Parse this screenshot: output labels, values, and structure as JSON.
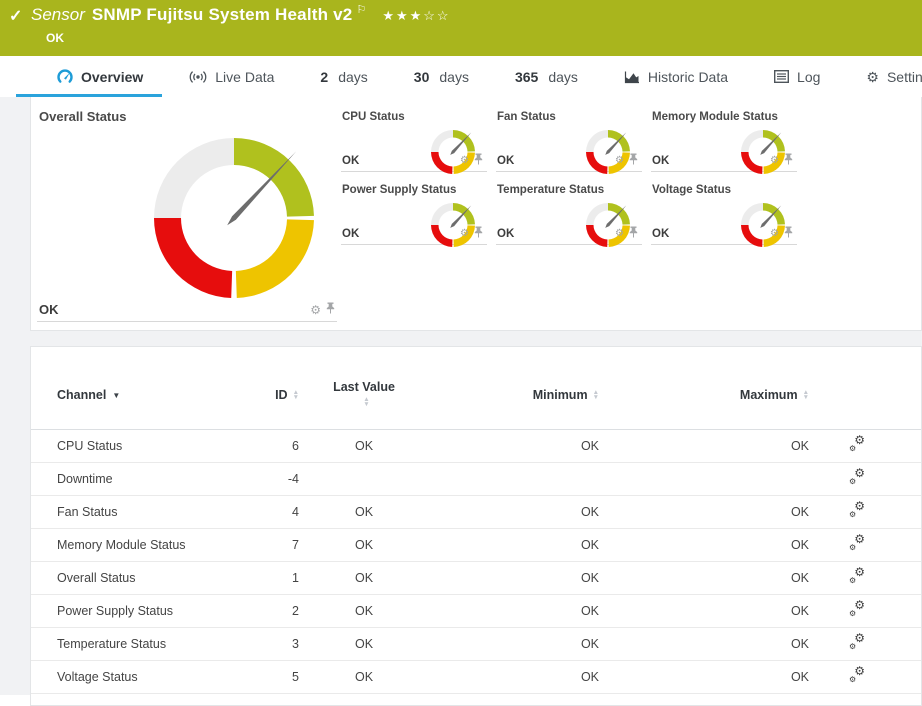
{
  "header": {
    "kind_label": "Sensor",
    "title": "SNMP Fujitsu System Health v2",
    "status": "OK",
    "priority_stars_filled": 3,
    "priority_stars_total": 5
  },
  "tabs": [
    {
      "id": "overview",
      "icon": "gauge-icon",
      "bold": "",
      "label": "Overview",
      "active": true
    },
    {
      "id": "live-data",
      "icon": "live-icon",
      "bold": "",
      "label": "Live Data",
      "active": false
    },
    {
      "id": "2-days",
      "icon": "",
      "bold": "2",
      "label": "days",
      "active": false
    },
    {
      "id": "30-days",
      "icon": "",
      "bold": "30",
      "label": "days",
      "active": false
    },
    {
      "id": "365-days",
      "icon": "",
      "bold": "365",
      "label": "days",
      "active": false
    },
    {
      "id": "historic-data",
      "icon": "chart-icon",
      "bold": "",
      "label": "Historic Data",
      "active": false
    },
    {
      "id": "log",
      "icon": "log-icon",
      "bold": "",
      "label": "Log",
      "active": false
    },
    {
      "id": "settings",
      "icon": "gear-icon",
      "bold": "",
      "label": "Settings",
      "active": false
    }
  ],
  "colors": {
    "header_green": "#a9b51d",
    "accent_blue": "#2aa3dc",
    "gauge_ok_green": "#b0c11e",
    "gauge_warning_yellow": "#eec400",
    "gauge_error_red": "#e60d0d",
    "gauge_empty_gray": "#ececec",
    "needle_gray": "#6d6d6d"
  },
  "overview": {
    "overall_gauge": {
      "title": "Overall Status",
      "value": "OK",
      "needle_angle_deg": 43
    },
    "mini_gauges": [
      {
        "title": "CPU Status",
        "value": "OK",
        "needle_angle_deg": 43
      },
      {
        "title": "Fan Status",
        "value": "OK",
        "needle_angle_deg": 43
      },
      {
        "title": "Memory Module Status",
        "value": "OK",
        "needle_angle_deg": 43
      },
      {
        "title": "Power Supply Status",
        "value": "OK",
        "needle_angle_deg": 43
      },
      {
        "title": "Temperature Status",
        "value": "OK",
        "needle_angle_deg": 43
      },
      {
        "title": "Voltage Status",
        "value": "OK",
        "needle_angle_deg": 43
      }
    ]
  },
  "table": {
    "columns": [
      {
        "key": "channel",
        "label": "Channel",
        "sort": "active-desc"
      },
      {
        "key": "id",
        "label": "ID",
        "sort": "none"
      },
      {
        "key": "last",
        "label": "Last Value",
        "sort": "none"
      },
      {
        "key": "min",
        "label": "Minimum",
        "sort": "none"
      },
      {
        "key": "max",
        "label": "Maximum",
        "sort": "none"
      }
    ],
    "rows": [
      {
        "channel": "CPU Status",
        "id": "6",
        "last": "OK",
        "min": "OK",
        "max": "OK"
      },
      {
        "channel": "Downtime",
        "id": "-4",
        "last": "",
        "min": "",
        "max": ""
      },
      {
        "channel": "Fan Status",
        "id": "4",
        "last": "OK",
        "min": "OK",
        "max": "OK"
      },
      {
        "channel": "Memory Module Status",
        "id": "7",
        "last": "OK",
        "min": "OK",
        "max": "OK"
      },
      {
        "channel": "Overall Status",
        "id": "1",
        "last": "OK",
        "min": "OK",
        "max": "OK"
      },
      {
        "channel": "Power Supply Status",
        "id": "2",
        "last": "OK",
        "min": "OK",
        "max": "OK"
      },
      {
        "channel": "Temperature Status",
        "id": "3",
        "last": "OK",
        "min": "OK",
        "max": "OK"
      },
      {
        "channel": "Voltage Status",
        "id": "5",
        "last": "OK",
        "min": "OK",
        "max": "OK"
      }
    ]
  }
}
